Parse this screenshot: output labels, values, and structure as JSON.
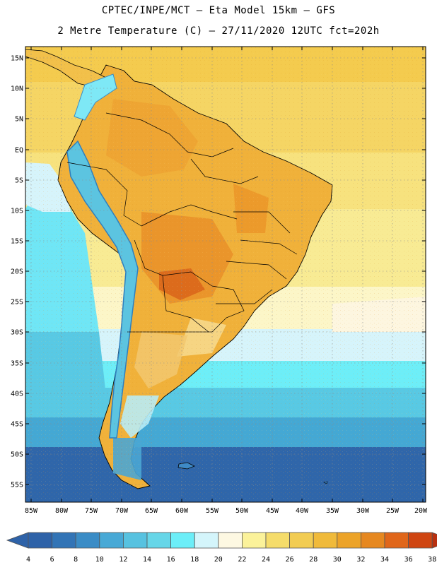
{
  "header": {
    "line1": "CPTEC/INPE/MCT –  Eta Model 15km – GFS",
    "line2": "2 Metre Temperature (C) – 27/11/2020 12UTC fct=202h"
  },
  "axes": {
    "lat_labels": [
      "15N",
      "10N",
      "5N",
      "EQ",
      "5S",
      "10S",
      "15S",
      "20S",
      "25S",
      "30S",
      "35S",
      "40S",
      "45S",
      "50S",
      "55S"
    ],
    "lon_labels": [
      "85W",
      "80W",
      "75W",
      "70W",
      "65W",
      "60W",
      "55W",
      "50W",
      "45W",
      "40W",
      "35W",
      "30W",
      "25W",
      "20W"
    ]
  },
  "colorbar": {
    "ticks": [
      "4",
      "6",
      "8",
      "10",
      "12",
      "14",
      "16",
      "18",
      "20",
      "22",
      "24",
      "26",
      "28",
      "30",
      "32",
      "34",
      "36",
      "38"
    ],
    "colors": [
      "#2e62a8",
      "#3274b6",
      "#3a8cc6",
      "#48a9d6",
      "#57c2e0",
      "#66d6e8",
      "#6ceef8",
      "#d4f5fb",
      "#fdf8e2",
      "#fbf29a",
      "#f5dc6a",
      "#f2cc52",
      "#f0ba3a",
      "#eca328",
      "#e68820",
      "#e0661a",
      "#cf4511",
      "#b83010"
    ]
  },
  "chart_data": {
    "type": "heatmap",
    "title": "2 Metre Temperature (C) – 27/11/2020 12UTC fct=202h",
    "subtitle": "CPTEC/INPE/MCT –  Eta Model 15km – GFS",
    "variable": "2 Metre Temperature",
    "units": "C",
    "lon_range": [
      -85,
      -20
    ],
    "lat_range": [
      -57,
      16
    ],
    "lon_ticks": [
      -85,
      -80,
      -75,
      -70,
      -65,
      -60,
      -55,
      -50,
      -45,
      -40,
      -35,
      -30,
      -25,
      -20
    ],
    "lat_ticks": [
      15,
      10,
      5,
      0,
      -5,
      -10,
      -15,
      -20,
      -25,
      -30,
      -35,
      -40,
      -45,
      -50,
      -55
    ],
    "colorbar_levels": [
      4,
      6,
      8,
      10,
      12,
      14,
      16,
      18,
      20,
      22,
      24,
      26,
      28,
      30,
      32,
      34,
      36,
      38
    ]
  }
}
